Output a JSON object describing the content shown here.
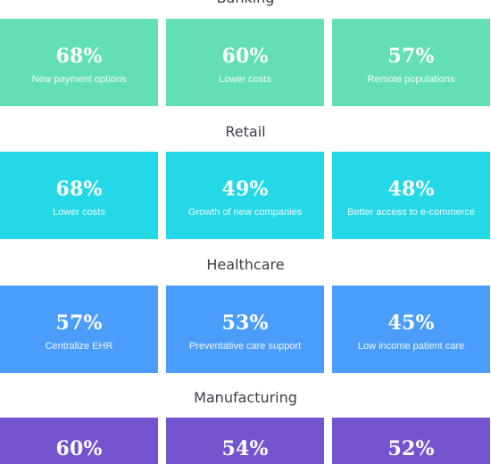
{
  "sections": [
    {
      "title": "Banking",
      "color": "#63dfb6",
      "cards": [
        {
          "value": "68%",
          "caption": "New payment options"
        },
        {
          "value": "60%",
          "caption": "Lower costs"
        },
        {
          "value": "57%",
          "caption": "Remote populations"
        }
      ]
    },
    {
      "title": "Retail",
      "color": "#25d8e8",
      "cards": [
        {
          "value": "68%",
          "caption": "Lower costs"
        },
        {
          "value": "49%",
          "caption": "Growth of new companies"
        },
        {
          "value": "48%",
          "caption": "Better access to e-commerce"
        }
      ]
    },
    {
      "title": "Healthcare",
      "color": "#4a9dfb",
      "cards": [
        {
          "value": "57%",
          "caption": "Centralize EHR"
        },
        {
          "value": "53%",
          "caption": "Preventative care support"
        },
        {
          "value": "45%",
          "caption": "Low income patient care"
        }
      ]
    },
    {
      "title": "Manufacturing",
      "color": "#7454ce",
      "cards": [
        {
          "value": "60%",
          "caption": ""
        },
        {
          "value": "54%",
          "caption": ""
        },
        {
          "value": "52%",
          "caption": ""
        }
      ]
    }
  ]
}
